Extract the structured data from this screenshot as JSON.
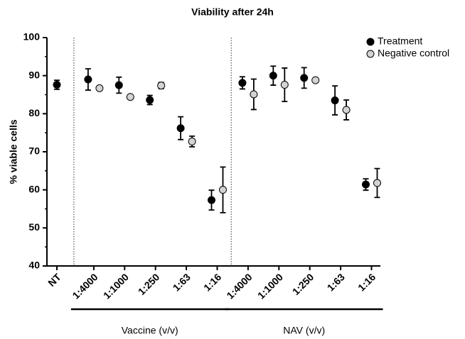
{
  "chart_data": {
    "type": "errorbar-scatter",
    "title": "Viability after 24h",
    "y_label": "% viable cells",
    "categories": [
      "NT",
      "1:4000",
      "1:1000",
      "1:250",
      "1:63",
      "1:16",
      "1:4000",
      "1:1000",
      "1:250",
      "1:63",
      "1:16"
    ],
    "groups": [
      "Vaccine (v/v)",
      "NAV (v/v)"
    ],
    "series": [
      {
        "name": "Treatment",
        "color": "#000000",
        "values": [
          87.6,
          89.0,
          87.5,
          83.6,
          76.2,
          57.3,
          88.1,
          90.0,
          89.4,
          83.5,
          61.4
        ],
        "errors": [
          1.2,
          2.8,
          2.1,
          1.2,
          3.0,
          2.6,
          1.6,
          2.5,
          2.7,
          3.8,
          1.5
        ]
      },
      {
        "name": "Negative control",
        "color": "#d3d3d3",
        "values": [
          null,
          86.7,
          84.4,
          87.4,
          72.7,
          60.0,
          85.1,
          87.6,
          88.8,
          81.0,
          61.8
        ],
        "errors": [
          null,
          0.5,
          0.5,
          0.8,
          1.4,
          6.0,
          4.0,
          4.4,
          0.5,
          2.6,
          3.8
        ]
      }
    ],
    "ylim": [
      40,
      100
    ],
    "yticks": [
      40,
      50,
      60,
      70,
      80,
      90,
      100
    ],
    "legend": "upper right"
  }
}
